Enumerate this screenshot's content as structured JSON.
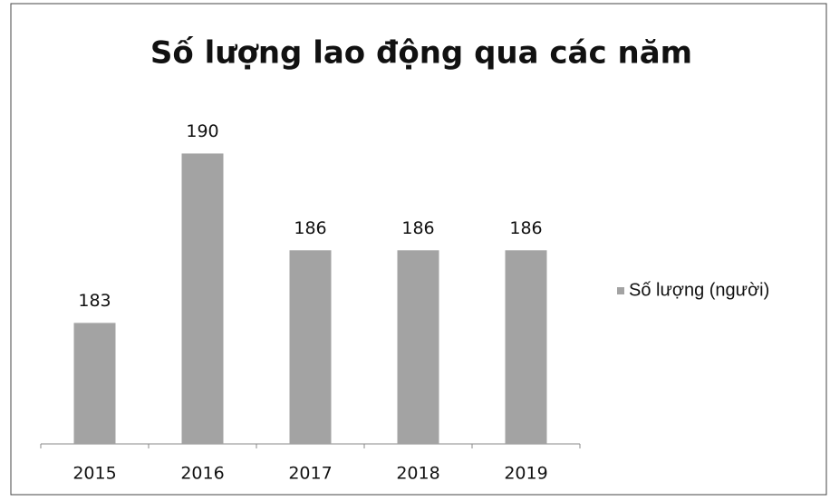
{
  "chart_data": {
    "type": "bar",
    "title": "Số lượng lao động qua các năm",
    "categories": [
      "2015",
      "2016",
      "2017",
      "2018",
      "2019"
    ],
    "series": [
      {
        "name": "Số lượng (người)",
        "color": "#a3a3a3",
        "values": [
          183,
          190,
          186,
          186,
          186
        ]
      }
    ],
    "ylim": [
      178,
      192
    ],
    "legend": "right"
  }
}
